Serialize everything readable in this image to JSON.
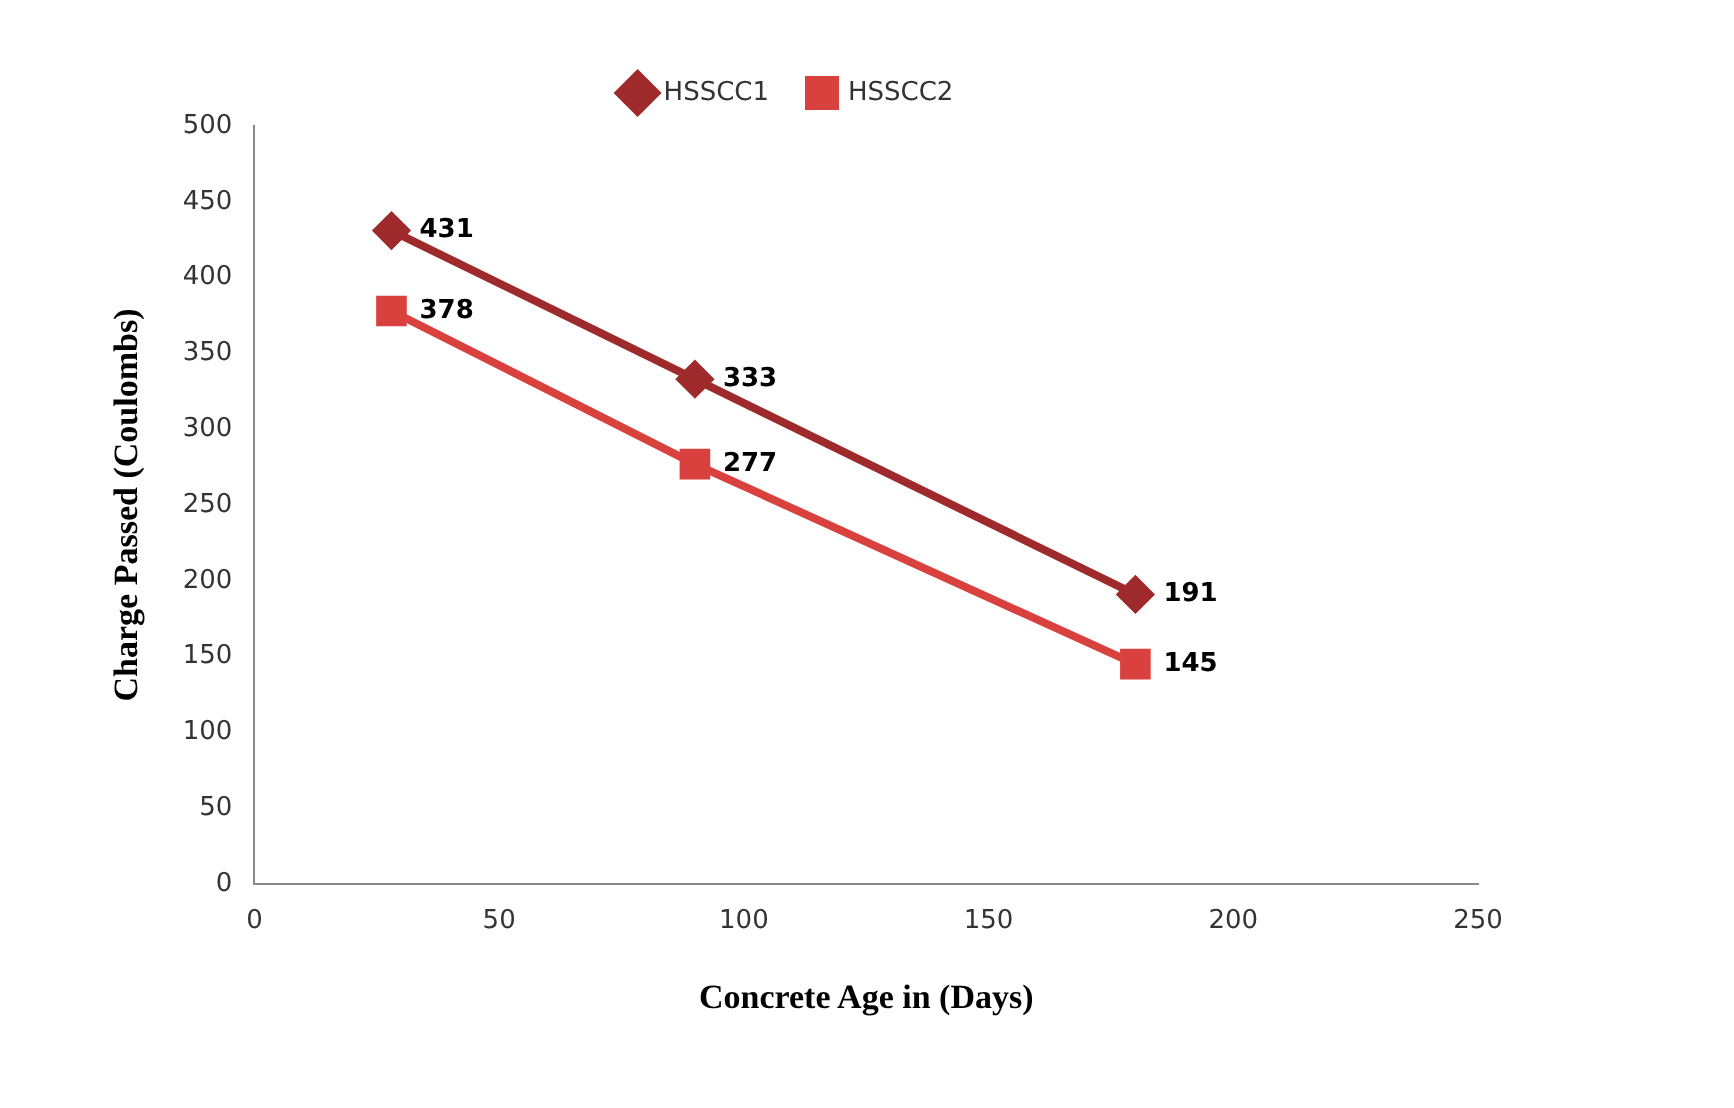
{
  "chart_data": {
    "type": "line",
    "xlabel": "Concrete Age in (Days)",
    "ylabel": "Charge Passed (Coulombs)",
    "x": [
      28,
      90,
      180
    ],
    "series": [
      {
        "name": "HSSCC1",
        "color": "#9e2a2b",
        "values": [
          431,
          333,
          191
        ],
        "marker": "diamond"
      },
      {
        "name": "HSSCC2",
        "color": "#d9413f",
        "values": [
          378,
          277,
          145
        ],
        "marker": "square"
      }
    ],
    "xlim": [
      0,
      250
    ],
    "xticks": [
      0,
      50,
      100,
      150,
      200,
      250
    ],
    "ylim": [
      0,
      500
    ],
    "yticks": [
      0,
      50,
      100,
      150,
      200,
      250,
      300,
      350,
      400,
      450,
      500
    ],
    "data_labels": true,
    "legend": "top",
    "grid": false,
    "line_style": "solid"
  }
}
